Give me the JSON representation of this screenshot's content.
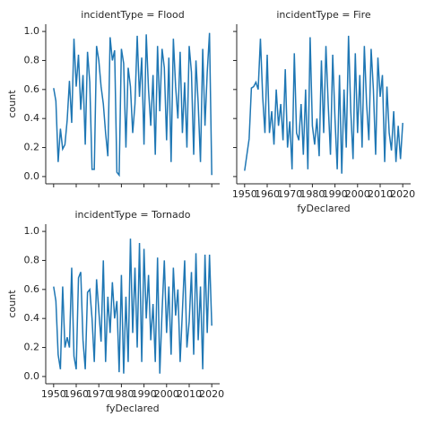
{
  "chart_data": [
    {
      "type": "line",
      "title": "incidentType = Flood",
      "ylabel": "count",
      "color": "#1f77b4",
      "x": [
        1950,
        1951,
        1952,
        1953,
        1954,
        1955,
        1956,
        1957,
        1958,
        1959,
        1960,
        1961,
        1962,
        1963,
        1964,
        1965,
        1966,
        1967,
        1968,
        1969,
        1970,
        1971,
        1972,
        1973,
        1974,
        1975,
        1976,
        1977,
        1978,
        1979,
        1980,
        1981,
        1982,
        1983,
        1984,
        1985,
        1986,
        1987,
        1988,
        1989,
        1990,
        1991,
        1992,
        1993,
        1994,
        1995,
        1996,
        1997,
        1998,
        1999,
        2000,
        2001,
        2002,
        2003,
        2004,
        2005,
        2006,
        2007,
        2008,
        2009,
        2010,
        2011,
        2012,
        2013,
        2014,
        2015,
        2016,
        2017,
        2018,
        2019,
        2020
      ],
      "values": [
        0.61,
        0.52,
        0.1,
        0.33,
        0.19,
        0.22,
        0.39,
        0.66,
        0.37,
        0.95,
        0.62,
        0.84,
        0.46,
        0.7,
        0.22,
        0.86,
        0.65,
        0.05,
        0.05,
        0.9,
        0.8,
        0.62,
        0.5,
        0.3,
        0.14,
        0.96,
        0.8,
        0.87,
        0.03,
        0.01,
        0.88,
        0.78,
        0.2,
        0.75,
        0.62,
        0.3,
        0.5,
        0.97,
        0.55,
        0.82,
        0.22,
        0.98,
        0.6,
        0.35,
        0.7,
        0.15,
        0.9,
        0.45,
        0.88,
        0.75,
        0.25,
        0.82,
        0.1,
        0.95,
        0.62,
        0.4,
        0.86,
        0.3,
        0.65,
        0.2,
        0.9,
        0.72,
        0.15,
        0.8,
        0.5,
        0.1,
        0.88,
        0.35,
        0.72,
        0.99,
        0.01
      ],
      "xlim": [
        1946.5,
        2023.5
      ],
      "xticks": [
        1950,
        1960,
        1970,
        1980,
        1990,
        2000,
        2010,
        2020
      ],
      "show_xtick_labels": false,
      "ylim": [
        -0.05,
        1.05
      ],
      "yticks": [
        {
          "value": 0,
          "label": "0.0"
        },
        0.2,
        0.4,
        0.6,
        0.8,
        {
          "value": 1,
          "label": "1.0"
        }
      ],
      "show_ytick_labels": true
    },
    {
      "type": "line",
      "title": "incidentType = Fire",
      "xlabel": "fyDeclared",
      "color": "#1f77b4",
      "x": [
        1950,
        1951,
        1952,
        1953,
        1954,
        1955,
        1956,
        1957,
        1958,
        1959,
        1960,
        1961,
        1962,
        1963,
        1964,
        1965,
        1966,
        1967,
        1968,
        1969,
        1970,
        1971,
        1972,
        1973,
        1974,
        1975,
        1976,
        1977,
        1978,
        1979,
        1980,
        1981,
        1982,
        1983,
        1984,
        1985,
        1986,
        1987,
        1988,
        1989,
        1990,
        1991,
        1992,
        1993,
        1994,
        1995,
        1996,
        1997,
        1998,
        1999,
        2000,
        2001,
        2002,
        2003,
        2004,
        2005,
        2006,
        2007,
        2008,
        2009,
        2010,
        2011,
        2012,
        2013,
        2014,
        2015,
        2016,
        2017,
        2018,
        2019,
        2020
      ],
      "values": [
        0.04,
        0.15,
        0.26,
        0.61,
        0.62,
        0.65,
        0.6,
        0.95,
        0.55,
        0.3,
        0.84,
        0.3,
        0.45,
        0.22,
        0.6,
        0.35,
        0.5,
        0.25,
        0.74,
        0.2,
        0.38,
        0.05,
        0.85,
        0.3,
        0.25,
        0.5,
        0.15,
        0.6,
        0.05,
        0.96,
        0.35,
        0.22,
        0.4,
        0.14,
        0.8,
        0.3,
        0.9,
        0.5,
        0.15,
        0.84,
        0.4,
        0.05,
        0.7,
        0.02,
        0.6,
        0.2,
        0.97,
        0.45,
        0.12,
        0.85,
        0.3,
        0.7,
        0.2,
        0.9,
        0.5,
        0.25,
        0.88,
        0.6,
        0.15,
        0.82,
        0.55,
        0.7,
        0.1,
        0.62,
        0.3,
        0.18,
        0.45,
        0.1,
        0.35,
        0.12,
        0.37
      ],
      "xlim": [
        1946.5,
        2023.5
      ],
      "xticks": [
        1950,
        1960,
        1970,
        1980,
        1990,
        2000,
        2010,
        2020
      ],
      "show_xtick_labels": true,
      "ylim": [
        -0.05,
        1.05
      ],
      "yticks": [
        {
          "value": 0,
          "label": "0.0"
        },
        0.2,
        0.4,
        0.6,
        0.8,
        {
          "value": 1,
          "label": "1.0"
        }
      ],
      "show_ytick_labels": false
    },
    {
      "type": "line",
      "title": "incidentType = Tornado",
      "xlabel": "fyDeclared",
      "ylabel": "count",
      "color": "#1f77b4",
      "x": [
        1950,
        1951,
        1952,
        1953,
        1954,
        1955,
        1956,
        1957,
        1958,
        1959,
        1960,
        1961,
        1962,
        1963,
        1964,
        1965,
        1966,
        1967,
        1968,
        1969,
        1970,
        1971,
        1972,
        1973,
        1974,
        1975,
        1976,
        1977,
        1978,
        1979,
        1980,
        1981,
        1982,
        1983,
        1984,
        1985,
        1986,
        1987,
        1988,
        1989,
        1990,
        1991,
        1992,
        1993,
        1994,
        1995,
        1996,
        1997,
        1998,
        1999,
        2000,
        2001,
        2002,
        2003,
        2004,
        2005,
        2006,
        2007,
        2008,
        2009,
        2010,
        2011,
        2012,
        2013,
        2014,
        2015,
        2016,
        2017,
        2018,
        2019,
        2020
      ],
      "values": [
        0.62,
        0.52,
        0.15,
        0.05,
        0.62,
        0.2,
        0.27,
        0.2,
        0.75,
        0.14,
        0.05,
        0.68,
        0.72,
        0.25,
        0.05,
        0.58,
        0.6,
        0.4,
        0.1,
        0.67,
        0.45,
        0.24,
        0.8,
        0.1,
        0.55,
        0.3,
        0.65,
        0.4,
        0.52,
        0.03,
        0.7,
        0.02,
        0.55,
        0.1,
        0.95,
        0.3,
        0.75,
        0.2,
        0.92,
        0.1,
        0.88,
        0.4,
        0.7,
        0.25,
        0.5,
        0.1,
        0.82,
        0.02,
        0.45,
        0.8,
        0.3,
        0.62,
        0.15,
        0.75,
        0.42,
        0.6,
        0.1,
        0.45,
        0.8,
        0.2,
        0.38,
        0.72,
        0.15,
        0.85,
        0.25,
        0.62,
        0.05,
        0.84,
        0.3,
        0.84,
        0.35
      ],
      "xlim": [
        1946.5,
        2023.5
      ],
      "xticks": [
        1950,
        1960,
        1970,
        1980,
        1990,
        2000,
        2010,
        2020
      ],
      "show_xtick_labels": true,
      "ylim": [
        -0.05,
        1.05
      ],
      "yticks": [
        {
          "value": 0,
          "label": "0.0"
        },
        0.2,
        0.4,
        0.6,
        0.8,
        {
          "value": 1,
          "label": "1.0"
        }
      ],
      "show_ytick_labels": true
    }
  ]
}
